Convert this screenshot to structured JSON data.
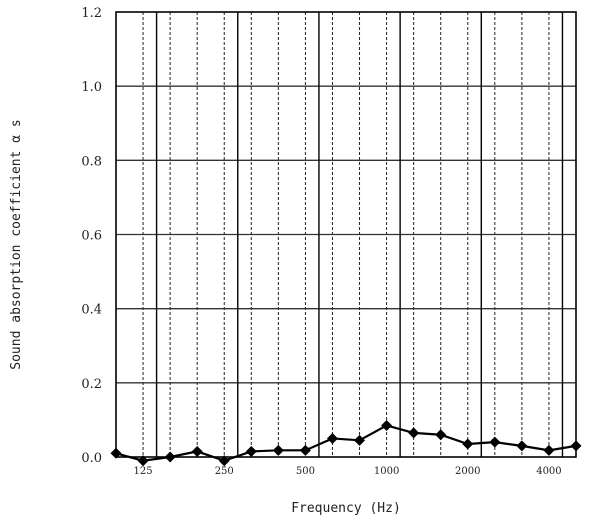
{
  "chart_data": {
    "type": "line",
    "title": "",
    "xlabel": "Frequency (Hz)",
    "ylabel": "Sound absorption coefficient α s",
    "x_scale": "log",
    "x": [
      100,
      125,
      160,
      200,
      250,
      315,
      400,
      500,
      630,
      800,
      1000,
      1250,
      1600,
      2000,
      2500,
      3150,
      4000,
      5000
    ],
    "x_tick_labels": [
      "125",
      "250",
      "500",
      "1000",
      "2000",
      "4000"
    ],
    "x_tick_values": [
      125,
      250,
      500,
      1000,
      2000,
      4000
    ],
    "y_ticks": [
      "0.0",
      "0.2",
      "0.4",
      "0.6",
      "0.8",
      "1.0",
      "1.2"
    ],
    "ylim": [
      0,
      1.2
    ],
    "grid": true,
    "series": [
      {
        "marker": "diamond",
        "color": "#000000",
        "values": [
          0.01,
          -0.01,
          0.0,
          0.015,
          -0.01,
          0.015,
          0.018,
          0.018,
          0.05,
          0.045,
          0.085,
          0.065,
          0.06,
          0.035,
          0.04,
          0.03,
          0.018,
          0.03
        ]
      }
    ]
  }
}
